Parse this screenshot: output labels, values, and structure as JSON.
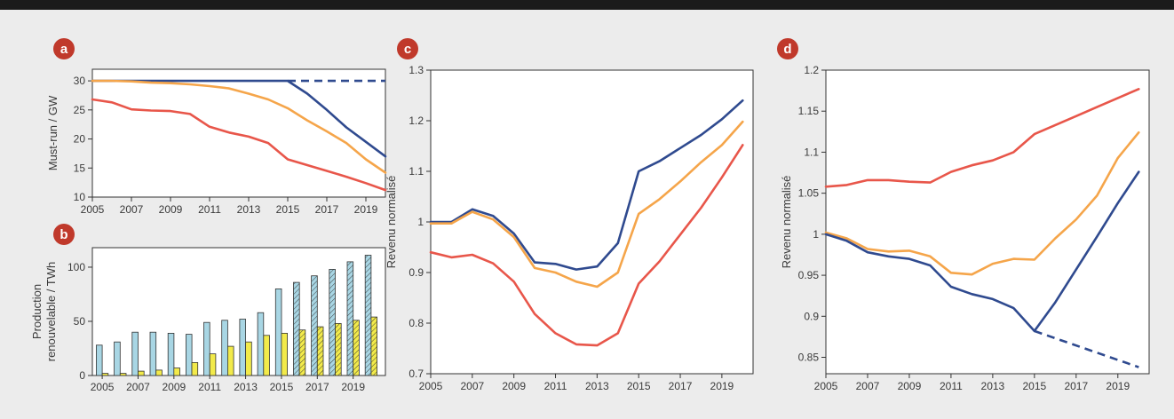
{
  "colors": {
    "blue": "#2f4a8f",
    "orange": "#f5a54a",
    "red": "#e8564a",
    "bar_teal": "#a8d6e4",
    "bar_yellow": "#f2ea4a",
    "badge": "#c0392b"
  },
  "chart_data": [
    {
      "id": "a",
      "type": "line",
      "panel_label": "a",
      "xlabel": "",
      "ylabel": "Must-run / GW",
      "xlim": [
        2005,
        2020
      ],
      "ylim": [
        10,
        32
      ],
      "x_ticks": [
        2005,
        2007,
        2009,
        2011,
        2013,
        2015,
        2017,
        2019
      ],
      "y_ticks": [
        10,
        15,
        20,
        25,
        30
      ],
      "series": [
        {
          "color": "blue",
          "x": [
            2005,
            2015,
            2016,
            2017,
            2018,
            2019,
            2020
          ],
          "y": [
            30,
            30,
            27.8,
            25,
            22,
            19.5,
            17
          ]
        },
        {
          "color": "blue",
          "dashed": true,
          "x": [
            2015,
            2020
          ],
          "y": [
            30,
            30
          ]
        },
        {
          "color": "orange",
          "x": [
            2005,
            2006,
            2007,
            2008,
            2009,
            2010,
            2011,
            2012,
            2013,
            2014,
            2015,
            2016,
            2017,
            2018,
            2019,
            2020
          ],
          "y": [
            30,
            30,
            29.9,
            29.7,
            29.6,
            29.4,
            29.1,
            28.7,
            27.8,
            26.8,
            25.3,
            23.2,
            21.3,
            19.3,
            16.5,
            14.2
          ]
        },
        {
          "color": "red",
          "x": [
            2005,
            2006,
            2007,
            2008,
            2009,
            2010,
            2011,
            2012,
            2013,
            2014,
            2015,
            2016,
            2017,
            2018,
            2019,
            2020
          ],
          "y": [
            26.8,
            26.3,
            25.1,
            24.9,
            24.8,
            24.3,
            22.1,
            21.1,
            20.4,
            19.3,
            16.5,
            15.5,
            14.5,
            13.5,
            12.4,
            11.2
          ]
        }
      ]
    },
    {
      "id": "b",
      "type": "bar",
      "panel_label": "b",
      "xlabel": "",
      "ylabel_lines": [
        "Production",
        "renouvelable / TWh"
      ],
      "ylim": [
        0,
        118
      ],
      "x_ticks": [
        2005,
        2007,
        2009,
        2011,
        2013,
        2015,
        2017,
        2019
      ],
      "y_ticks": [
        0,
        50,
        100
      ],
      "categories": [
        2005,
        2006,
        2007,
        2008,
        2009,
        2010,
        2011,
        2012,
        2013,
        2014,
        2015,
        2016,
        2017,
        2018,
        2019,
        2020
      ],
      "hatched_from": 2016,
      "series": [
        {
          "color": "bar_teal",
          "values": [
            28,
            31,
            40,
            40,
            39,
            38,
            49,
            51,
            52,
            58,
            80,
            86,
            92,
            98,
            105,
            111
          ]
        },
        {
          "color": "bar_yellow",
          "values": [
            2,
            2,
            4,
            5,
            7,
            12,
            20,
            27,
            31,
            37,
            39,
            42,
            45,
            48,
            51,
            54
          ]
        }
      ]
    },
    {
      "id": "c",
      "type": "line",
      "panel_label": "c",
      "xlabel": "",
      "ylabel": "Revenu normalisé",
      "xlim": [
        2005,
        2020.5
      ],
      "ylim": [
        0.7,
        1.3
      ],
      "x_ticks": [
        2005,
        2007,
        2009,
        2011,
        2013,
        2015,
        2017,
        2019
      ],
      "y_ticks": [
        0.7,
        0.8,
        0.9,
        1,
        1.1,
        1.2,
        1.3
      ],
      "y_tick_labels": [
        "0.7",
        "0.8",
        "0.9",
        "1",
        "1.1",
        "1.2",
        "1.3"
      ],
      "series": [
        {
          "color": "blue",
          "x": [
            2005,
            2006,
            2007,
            2008,
            2009,
            2010,
            2011,
            2012,
            2013,
            2014,
            2015,
            2016,
            2017,
            2018,
            2019,
            2020
          ],
          "y": [
            1,
            1,
            1.025,
            1.012,
            0.977,
            0.92,
            0.917,
            0.906,
            0.912,
            0.958,
            1.1,
            1.12,
            1.146,
            1.172,
            1.203,
            1.24
          ]
        },
        {
          "color": "orange",
          "x": [
            2005,
            2006,
            2007,
            2008,
            2009,
            2010,
            2011,
            2012,
            2013,
            2014,
            2015,
            2016,
            2017,
            2018,
            2019,
            2020
          ],
          "y": [
            0.997,
            0.997,
            1.02,
            1.005,
            0.97,
            0.909,
            0.9,
            0.882,
            0.872,
            0.9,
            1.016,
            1.045,
            1.08,
            1.118,
            1.152,
            1.198
          ]
        },
        {
          "color": "red",
          "x": [
            2005,
            2006,
            2007,
            2008,
            2009,
            2010,
            2011,
            2012,
            2013,
            2014,
            2015,
            2016,
            2017,
            2018,
            2019,
            2020
          ],
          "y": [
            0.94,
            0.93,
            0.935,
            0.918,
            0.882,
            0.818,
            0.78,
            0.758,
            0.756,
            0.78,
            0.878,
            0.922,
            0.975,
            1.028,
            1.088,
            1.152
          ]
        }
      ]
    },
    {
      "id": "d",
      "type": "line",
      "panel_label": "d",
      "xlabel": "",
      "ylabel": "Revenu normalisé",
      "xlim": [
        2005,
        2020.5
      ],
      "ylim": [
        0.83,
        1.2
      ],
      "x_ticks": [
        2005,
        2007,
        2009,
        2011,
        2013,
        2015,
        2017,
        2019
      ],
      "y_ticks": [
        0.85,
        0.9,
        0.95,
        1,
        1.05,
        1.1,
        1.15,
        1.2
      ],
      "y_tick_labels": [
        "0.85",
        "0.9",
        "0.95",
        "1",
        "1.05",
        "1.1",
        "1.15",
        "1.2"
      ],
      "series": [
        {
          "color": "red",
          "x": [
            2005,
            2006,
            2007,
            2008,
            2009,
            2010,
            2011,
            2012,
            2013,
            2014,
            2015,
            2016,
            2017,
            2018,
            2019,
            2020
          ],
          "y": [
            1.058,
            1.06,
            1.066,
            1.066,
            1.064,
            1.063,
            1.076,
            1.084,
            1.09,
            1.1,
            1.122,
            1.133,
            1.144,
            1.155,
            1.166,
            1.177
          ]
        },
        {
          "color": "orange",
          "x": [
            2005,
            2006,
            2007,
            2008,
            2009,
            2010,
            2011,
            2012,
            2013,
            2014,
            2015,
            2016,
            2017,
            2018,
            2019,
            2020
          ],
          "y": [
            1.002,
            0.995,
            0.982,
            0.979,
            0.98,
            0.973,
            0.953,
            0.951,
            0.964,
            0.97,
            0.969,
            0.995,
            1.018,
            1.047,
            1.093,
            1.124
          ]
        },
        {
          "color": "blue",
          "x": [
            2005,
            2006,
            2007,
            2008,
            2009,
            2010,
            2011,
            2012,
            2013,
            2014,
            2015,
            2016,
            2017,
            2018,
            2019,
            2020
          ],
          "y": [
            1,
            0.992,
            0.978,
            0.973,
            0.97,
            0.962,
            0.936,
            0.927,
            0.921,
            0.91,
            0.882,
            0.917,
            0.957,
            0.997,
            1.038,
            1.076
          ]
        },
        {
          "color": "blue",
          "dashed": true,
          "x": [
            2015,
            2020
          ],
          "y": [
            0.882,
            0.838
          ]
        }
      ]
    }
  ]
}
